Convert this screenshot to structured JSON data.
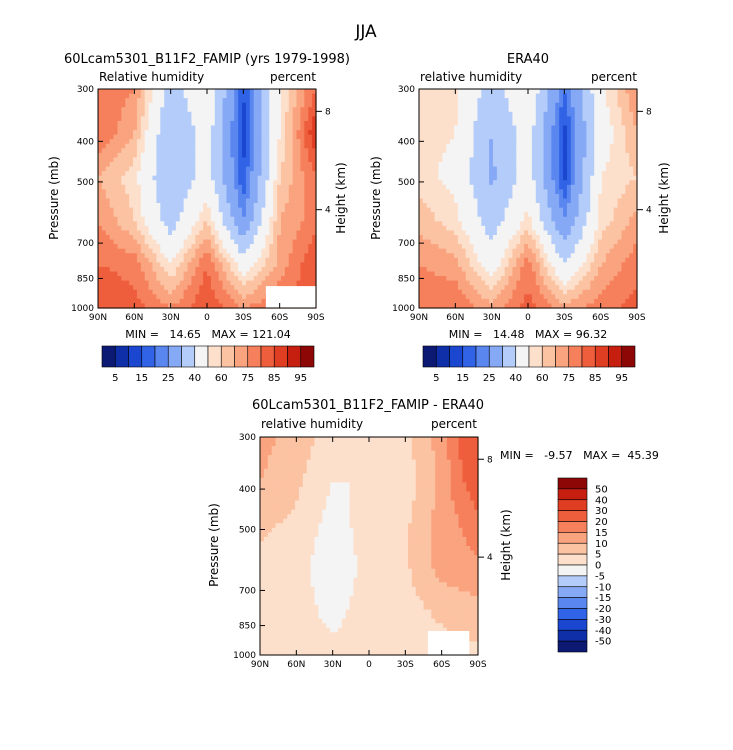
{
  "figure": {
    "title": "JJA"
  },
  "panels": [
    {
      "id": "model",
      "title": "60Lcam5301_B11F2_FAMIP (yrs 1979-1998)",
      "left_label": "Relative humidity",
      "right_label": "percent",
      "ylabel": "Pressure (mb)",
      "y2label": "Height (km)",
      "xticks": [
        "90N",
        "60N",
        "30N",
        "0",
        "30S",
        "60S",
        "90S"
      ],
      "yticks": [
        "300",
        "400",
        "500",
        "700",
        "850",
        "1000"
      ],
      "y2ticks": [
        "8",
        "4"
      ],
      "stats": "MIN =   14.65   MAX = 121.04",
      "min": 14.65,
      "max": 121.04
    },
    {
      "id": "obs",
      "title": "ERA40",
      "left_label": "relative humidity",
      "right_label": "percent",
      "ylabel": "Pressure (mb)",
      "y2label": "Height (km)",
      "xticks": [
        "90N",
        "60N",
        "30N",
        "0",
        "30S",
        "60S",
        "90S"
      ],
      "yticks": [
        "300",
        "400",
        "500",
        "700",
        "850",
        "1000"
      ],
      "y2ticks": [
        "8",
        "4"
      ],
      "stats": "MIN =   14.48   MAX = 96.32",
      "min": 14.48,
      "max": 96.32
    },
    {
      "id": "diff",
      "title": "60Lcam5301_B11F2_FAMIP - ERA40",
      "left_label": "relative humidity",
      "right_label": "percent",
      "ylabel": "Pressure (mb)",
      "y2label": "Height (km)",
      "xticks": [
        "90N",
        "60N",
        "30N",
        "0",
        "30S",
        "60S",
        "90S"
      ],
      "yticks": [
        "300",
        "400",
        "500",
        "700",
        "850",
        "1000"
      ],
      "y2ticks": [
        "8",
        "4"
      ],
      "stats": "MIN =   -9.57   MAX =  45.39",
      "min": -9.57,
      "max": 45.39
    }
  ],
  "colorbar_abs": {
    "labels": [
      "5",
      "15",
      "25",
      "40",
      "60",
      "75",
      "85",
      "95"
    ],
    "colors": [
      "#0c1a74",
      "#0f2fa8",
      "#1b46cf",
      "#3163e6",
      "#5a86f0",
      "#86a9f5",
      "#b4ccf9",
      "#f4f4f4",
      "#fde0cc",
      "#fcc3a3",
      "#faa37f",
      "#f6805c",
      "#ee5e3c",
      "#e03e22",
      "#c61f10",
      "#8e0707"
    ]
  },
  "colorbar_diff": {
    "labels": [
      "50",
      "40",
      "30",
      "20",
      "15",
      "10",
      "5",
      "0",
      "-5",
      "-10",
      "-15",
      "-20",
      "-30",
      "-40",
      "-50"
    ],
    "colors": [
      "#8e0707",
      "#c61f10",
      "#e03e22",
      "#ee5e3c",
      "#f6805c",
      "#faa37f",
      "#fcc3a3",
      "#fde0cc",
      "#f4f4f4",
      "#b4ccf9",
      "#86a9f5",
      "#5a86f0",
      "#3163e6",
      "#1b46cf",
      "#0f2fa8",
      "#0c1a74"
    ]
  },
  "chart_data": [
    {
      "type": "heatmap",
      "title": "60Lcam5301_B11F2_FAMIP (yrs 1979-1998)",
      "xlabel": "",
      "ylabel": "Pressure (mb)",
      "x": [
        "90N",
        "60N",
        "30N",
        "0",
        "30S",
        "60S",
        "90S"
      ],
      "y": [
        300,
        400,
        500,
        700,
        850,
        1000
      ],
      "units": "percent",
      "values": [
        [
          80,
          75,
          45,
          60,
          20,
          60,
          80
        ],
        [
          80,
          70,
          40,
          55,
          18,
          60,
          90
        ],
        [
          70,
          62,
          40,
          55,
          20,
          65,
          80
        ],
        [
          75,
          65,
          45,
          65,
          30,
          70,
          78
        ],
        [
          80,
          78,
          60,
          80,
          55,
          72,
          85
        ],
        [
          85,
          82,
          75,
          85,
          75,
          80,
          85
        ]
      ],
      "min": 14.65,
      "max": 121.04
    },
    {
      "type": "heatmap",
      "title": "ERA40",
      "xlabel": "",
      "ylabel": "Pressure (mb)",
      "x": [
        "90N",
        "60N",
        "30N",
        "0",
        "30S",
        "60S",
        "90S"
      ],
      "y": [
        300,
        400,
        500,
        700,
        850,
        1000
      ],
      "units": "percent",
      "values": [
        [
          60,
          62,
          45,
          60,
          25,
          58,
          75
        ],
        [
          62,
          60,
          40,
          55,
          18,
          55,
          70
        ],
        [
          62,
          58,
          38,
          55,
          18,
          60,
          65
        ],
        [
          68,
          62,
          45,
          62,
          30,
          62,
          72
        ],
        [
          75,
          72,
          55,
          78,
          50,
          70,
          78
        ],
        [
          80,
          80,
          72,
          82,
          72,
          78,
          82
        ]
      ],
      "min": 14.48,
      "max": 96.32
    },
    {
      "type": "heatmap",
      "title": "60Lcam5301_B11F2_FAMIP - ERA40",
      "xlabel": "",
      "ylabel": "Pressure (mb)",
      "x": [
        "90N",
        "60N",
        "30N",
        "0",
        "30S",
        "60S",
        "90S"
      ],
      "y": [
        300,
        400,
        500,
        700,
        850,
        1000
      ],
      "units": "percent",
      "values": [
        [
          12,
          8,
          2,
          2,
          4,
          12,
          30
        ],
        [
          10,
          6,
          0,
          0,
          2,
          12,
          25
        ],
        [
          6,
          4,
          -2,
          2,
          4,
          12,
          18
        ],
        [
          4,
          2,
          -4,
          2,
          4,
          12,
          14
        ],
        [
          2,
          3,
          -2,
          3,
          3,
          6,
          8
        ],
        [
          0,
          2,
          2,
          2,
          3,
          3,
          4
        ]
      ],
      "min": -9.57,
      "max": 45.39
    }
  ]
}
